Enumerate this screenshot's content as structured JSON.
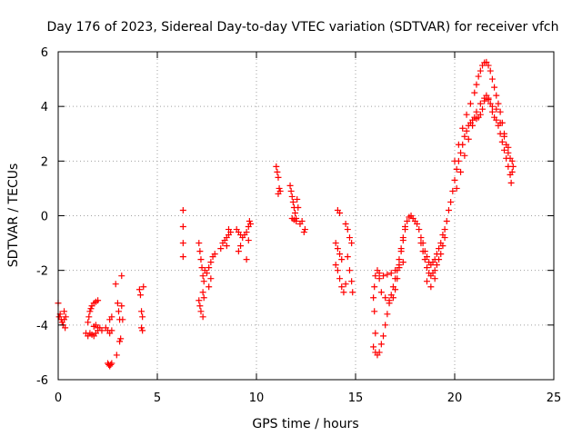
{
  "chart_data": {
    "type": "scatter",
    "title": "Day 176 of 2023, Sidereal Day-to-day VTEC variation (SDTVAR) for receiver vfch",
    "xlabel": "GPS time / hours",
    "ylabel": "SDTVAR / TECUs",
    "xlim": [
      0,
      25
    ],
    "ylim": [
      -6,
      6
    ],
    "xticks": [
      0,
      5,
      10,
      15,
      20,
      25
    ],
    "yticks": [
      -6,
      -4,
      -2,
      0,
      2,
      4,
      6
    ],
    "xtick_labels": [
      "0",
      "5",
      "10",
      "15",
      "20",
      "25"
    ],
    "ytick_labels": [
      "-6",
      "-4",
      "-2",
      "0",
      "2",
      "4",
      "6"
    ],
    "grid": true,
    "legend": "none",
    "marker": "+",
    "color": "#ff0000",
    "series": [
      {
        "name": "SDTVAR",
        "points": [
          [
            0.0,
            -3.2
          ],
          [
            0.05,
            -3.7
          ],
          [
            0.1,
            -3.6
          ],
          [
            0.15,
            -3.8
          ],
          [
            0.2,
            -3.9
          ],
          [
            0.25,
            -4.0
          ],
          [
            0.3,
            -3.8
          ],
          [
            0.3,
            -3.5
          ],
          [
            0.35,
            -4.1
          ],
          [
            0.38,
            -3.7
          ],
          [
            1.4,
            -4.3
          ],
          [
            1.5,
            -4.4
          ],
          [
            1.6,
            -4.3
          ],
          [
            1.7,
            -4.35
          ],
          [
            1.8,
            -4.4
          ],
          [
            1.9,
            -4.3
          ],
          [
            2.0,
            -4.2
          ],
          [
            2.1,
            -4.1
          ],
          [
            2.2,
            -4.2
          ],
          [
            1.5,
            -3.9
          ],
          [
            1.55,
            -3.7
          ],
          [
            1.6,
            -3.5
          ],
          [
            1.65,
            -3.4
          ],
          [
            1.7,
            -3.3
          ],
          [
            1.8,
            -3.2
          ],
          [
            1.9,
            -3.15
          ],
          [
            2.0,
            -3.1
          ],
          [
            1.8,
            -4.05
          ],
          [
            1.9,
            -4.0
          ],
          [
            2.0,
            -4.1
          ],
          [
            2.4,
            -4.1
          ],
          [
            2.5,
            -4.2
          ],
          [
            2.6,
            -4.3
          ],
          [
            2.7,
            -4.2
          ],
          [
            2.6,
            -3.8
          ],
          [
            2.7,
            -3.7
          ],
          [
            2.5,
            -5.4
          ],
          [
            2.55,
            -5.45
          ],
          [
            2.6,
            -5.5
          ],
          [
            2.65,
            -5.45
          ],
          [
            2.7,
            -5.4
          ],
          [
            2.9,
            -2.5
          ],
          [
            3.0,
            -3.2
          ],
          [
            3.05,
            -3.5
          ],
          [
            3.1,
            -3.8
          ],
          [
            3.1,
            -4.6
          ],
          [
            3.15,
            -4.5
          ],
          [
            3.2,
            -2.2
          ],
          [
            3.2,
            -3.3
          ],
          [
            3.25,
            -3.8
          ],
          [
            2.95,
            -5.1
          ],
          [
            4.1,
            -2.7
          ],
          [
            4.15,
            -2.9
          ],
          [
            4.2,
            -3.5
          ],
          [
            4.25,
            -3.7
          ],
          [
            4.2,
            -4.1
          ],
          [
            4.25,
            -4.2
          ],
          [
            4.3,
            -2.6
          ],
          [
            6.3,
            0.2
          ],
          [
            6.3,
            -0.4
          ],
          [
            6.3,
            -1.0
          ],
          [
            6.3,
            -1.5
          ],
          [
            7.1,
            -1.0
          ],
          [
            7.15,
            -1.3
          ],
          [
            7.2,
            -1.6
          ],
          [
            7.25,
            -1.9
          ],
          [
            7.3,
            -2.2
          ],
          [
            7.35,
            -2.4
          ],
          [
            7.3,
            -2.8
          ],
          [
            7.35,
            -3.0
          ],
          [
            7.1,
            -3.1
          ],
          [
            7.15,
            -3.3
          ],
          [
            7.2,
            -3.5
          ],
          [
            7.3,
            -3.7
          ],
          [
            7.4,
            -2.0
          ],
          [
            7.5,
            -2.1
          ],
          [
            7.6,
            -1.9
          ],
          [
            7.7,
            -1.7
          ],
          [
            7.8,
            -1.5
          ],
          [
            7.9,
            -1.4
          ],
          [
            7.7,
            -2.3
          ],
          [
            7.6,
            -2.6
          ],
          [
            8.2,
            -1.2
          ],
          [
            8.3,
            -1.0
          ],
          [
            8.4,
            -0.9
          ],
          [
            8.5,
            -0.8
          ],
          [
            8.6,
            -0.7
          ],
          [
            8.7,
            -0.6
          ],
          [
            8.5,
            -1.1
          ],
          [
            8.6,
            -0.5
          ],
          [
            9.0,
            -0.5
          ],
          [
            9.1,
            -0.6
          ],
          [
            9.2,
            -0.7
          ],
          [
            9.3,
            -0.8
          ],
          [
            9.4,
            -0.7
          ],
          [
            9.5,
            -0.6
          ],
          [
            9.6,
            -0.4
          ],
          [
            9.65,
            -0.2
          ],
          [
            9.1,
            -1.3
          ],
          [
            9.2,
            -1.1
          ],
          [
            9.5,
            -1.6
          ],
          [
            9.6,
            -0.9
          ],
          [
            9.7,
            -0.3
          ],
          [
            11.0,
            1.8
          ],
          [
            11.05,
            1.6
          ],
          [
            11.1,
            1.4
          ],
          [
            11.15,
            1.0
          ],
          [
            11.2,
            0.9
          ],
          [
            11.1,
            0.8
          ],
          [
            11.7,
            1.1
          ],
          [
            11.75,
            0.9
          ],
          [
            11.8,
            0.7
          ],
          [
            11.85,
            0.5
          ],
          [
            11.9,
            0.3
          ],
          [
            11.95,
            0.1
          ],
          [
            12.0,
            -0.1
          ],
          [
            12.05,
            0.6
          ],
          [
            11.8,
            -0.1
          ],
          [
            11.9,
            -0.15
          ],
          [
            12.0,
            -0.2
          ],
          [
            12.1,
            0.3
          ],
          [
            12.2,
            -0.3
          ],
          [
            12.3,
            -0.2
          ],
          [
            12.4,
            -0.6
          ],
          [
            12.45,
            -0.5
          ],
          [
            14.0,
            -1.0
          ],
          [
            14.1,
            -1.2
          ],
          [
            14.2,
            -1.4
          ],
          [
            14.3,
            -1.6
          ],
          [
            14.0,
            -1.8
          ],
          [
            14.1,
            -2.0
          ],
          [
            14.2,
            -2.3
          ],
          [
            14.3,
            -2.6
          ],
          [
            14.4,
            -2.8
          ],
          [
            14.5,
            -2.5
          ],
          [
            14.1,
            0.2
          ],
          [
            14.2,
            0.1
          ],
          [
            14.5,
            -0.3
          ],
          [
            14.6,
            -0.5
          ],
          [
            14.7,
            -0.8
          ],
          [
            14.8,
            -1.0
          ],
          [
            14.6,
            -1.5
          ],
          [
            14.7,
            -2.0
          ],
          [
            14.8,
            -2.4
          ],
          [
            14.85,
            -2.8
          ],
          [
            15.9,
            -4.8
          ],
          [
            16.0,
            -4.3
          ],
          [
            15.95,
            -3.5
          ],
          [
            15.9,
            -3.0
          ],
          [
            15.95,
            -2.6
          ],
          [
            16.0,
            -2.2
          ],
          [
            16.1,
            -2.0
          ],
          [
            16.2,
            -2.3
          ],
          [
            16.3,
            -2.8
          ],
          [
            16.5,
            -3.0
          ],
          [
            16.7,
            -3.1
          ],
          [
            16.9,
            -3.0
          ],
          [
            17.0,
            -2.7
          ],
          [
            17.1,
            -2.3
          ],
          [
            17.2,
            -1.8
          ],
          [
            17.3,
            -1.3
          ],
          [
            17.4,
            -0.9
          ],
          [
            17.5,
            -0.5
          ],
          [
            17.6,
            -0.2
          ],
          [
            17.7,
            -0.05
          ],
          [
            17.8,
            0.0
          ],
          [
            17.9,
            -0.1
          ],
          [
            18.0,
            -0.2
          ],
          [
            18.1,
            -0.3
          ],
          [
            18.2,
            -0.5
          ],
          [
            18.3,
            -0.8
          ],
          [
            18.4,
            -1.0
          ],
          [
            18.5,
            -1.3
          ],
          [
            18.6,
            -1.5
          ],
          [
            18.7,
            -1.7
          ],
          [
            18.8,
            -1.8
          ],
          [
            18.9,
            -1.7
          ],
          [
            19.0,
            -1.6
          ],
          [
            19.1,
            -1.4
          ],
          [
            19.2,
            -1.2
          ],
          [
            19.3,
            -1.0
          ],
          [
            19.4,
            -0.7
          ],
          [
            19.5,
            -0.5
          ],
          [
            19.6,
            -0.2
          ],
          [
            19.7,
            0.2
          ],
          [
            16.0,
            -5.0
          ],
          [
            16.1,
            -5.1
          ],
          [
            16.2,
            -5.0
          ],
          [
            16.3,
            -4.7
          ],
          [
            16.4,
            -4.4
          ],
          [
            16.5,
            -4.0
          ],
          [
            16.6,
            -3.6
          ],
          [
            16.7,
            -3.2
          ],
          [
            16.8,
            -2.9
          ],
          [
            16.9,
            -2.6
          ],
          [
            17.0,
            -2.3
          ],
          [
            17.1,
            -2.0
          ],
          [
            17.2,
            -1.6
          ],
          [
            17.3,
            -1.2
          ],
          [
            17.4,
            -0.8
          ],
          [
            17.5,
            -0.4
          ],
          [
            18.3,
            -1.0
          ],
          [
            18.4,
            -1.3
          ],
          [
            18.5,
            -1.6
          ],
          [
            18.6,
            -1.9
          ],
          [
            18.7,
            -2.1
          ],
          [
            18.8,
            -2.2
          ],
          [
            18.9,
            -2.1
          ],
          [
            19.0,
            -2.0
          ],
          [
            19.1,
            -1.8
          ],
          [
            19.2,
            -1.6
          ],
          [
            19.3,
            -1.4
          ],
          [
            19.4,
            -1.1
          ],
          [
            19.5,
            -0.8
          ],
          [
            16.2,
            -2.1
          ],
          [
            16.4,
            -2.2
          ],
          [
            16.6,
            -2.15
          ],
          [
            16.8,
            -2.1
          ],
          [
            17.0,
            -2.0
          ],
          [
            17.2,
            -1.9
          ],
          [
            17.4,
            -1.7
          ],
          [
            18.6,
            -2.4
          ],
          [
            18.8,
            -2.6
          ],
          [
            19.0,
            -2.3
          ],
          [
            19.8,
            0.5
          ],
          [
            19.9,
            0.9
          ],
          [
            20.0,
            1.3
          ],
          [
            20.1,
            1.7
          ],
          [
            20.2,
            2.0
          ],
          [
            20.3,
            2.3
          ],
          [
            20.4,
            2.6
          ],
          [
            20.5,
            2.9
          ],
          [
            20.6,
            3.1
          ],
          [
            20.7,
            3.3
          ],
          [
            20.8,
            3.4
          ],
          [
            20.9,
            3.5
          ],
          [
            21.0,
            3.6
          ],
          [
            21.1,
            3.55
          ],
          [
            21.2,
            3.6
          ],
          [
            21.3,
            3.7
          ],
          [
            21.4,
            3.9
          ],
          [
            21.5,
            4.2
          ],
          [
            21.6,
            4.4
          ],
          [
            21.7,
            4.3
          ],
          [
            21.8,
            4.1
          ],
          [
            21.9,
            3.8
          ],
          [
            22.0,
            3.6
          ],
          [
            22.1,
            3.5
          ],
          [
            22.2,
            3.3
          ],
          [
            22.3,
            3.0
          ],
          [
            22.4,
            2.7
          ],
          [
            22.5,
            2.4
          ],
          [
            22.6,
            2.1
          ],
          [
            22.7,
            1.8
          ],
          [
            22.8,
            1.5
          ],
          [
            22.85,
            1.2
          ],
          [
            20.0,
            2.0
          ],
          [
            20.2,
            2.6
          ],
          [
            20.4,
            3.2
          ],
          [
            20.6,
            3.7
          ],
          [
            20.8,
            4.1
          ],
          [
            21.0,
            4.5
          ],
          [
            21.1,
            4.8
          ],
          [
            21.2,
            5.1
          ],
          [
            21.3,
            5.3
          ],
          [
            21.4,
            5.5
          ],
          [
            21.5,
            5.6
          ],
          [
            21.6,
            5.62
          ],
          [
            21.7,
            5.5
          ],
          [
            21.8,
            5.3
          ],
          [
            21.9,
            5.0
          ],
          [
            22.0,
            4.7
          ],
          [
            22.1,
            4.4
          ],
          [
            22.2,
            4.1
          ],
          [
            22.3,
            3.8
          ],
          [
            22.4,
            3.4
          ],
          [
            22.5,
            3.0
          ],
          [
            22.6,
            2.6
          ],
          [
            22.7,
            2.3
          ],
          [
            22.8,
            2.1
          ],
          [
            22.9,
            2.0
          ],
          [
            22.95,
            1.8
          ],
          [
            20.1,
            1.0
          ],
          [
            20.3,
            1.6
          ],
          [
            20.5,
            2.2
          ],
          [
            20.7,
            2.8
          ],
          [
            20.9,
            3.3
          ],
          [
            21.1,
            3.8
          ],
          [
            21.3,
            4.1
          ],
          [
            21.5,
            4.3
          ],
          [
            21.7,
            4.25
          ],
          [
            21.9,
            4.0
          ],
          [
            22.1,
            3.9
          ],
          [
            22.3,
            3.4
          ],
          [
            22.5,
            2.9
          ],
          [
            22.7,
            2.5
          ],
          [
            22.9,
            1.6
          ]
        ]
      }
    ]
  }
}
